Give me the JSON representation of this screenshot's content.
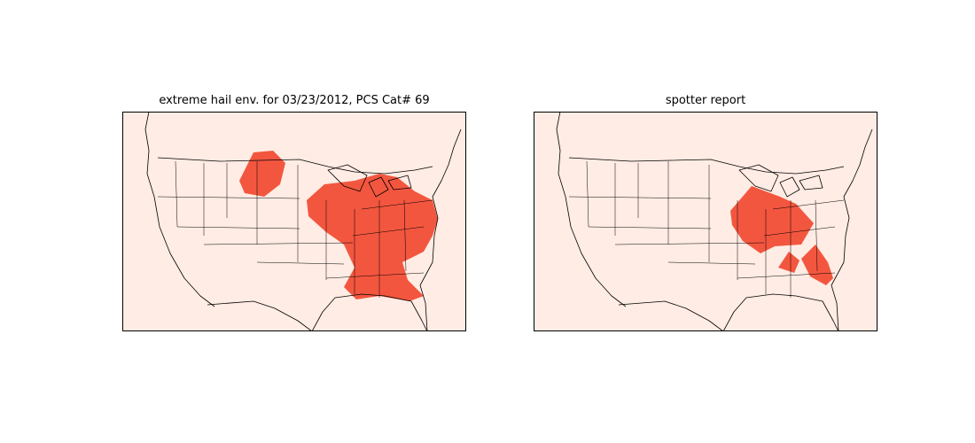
{
  "panels": [
    {
      "title": "extreme hail env. for 03/23/2012, PCS Cat# 69"
    },
    {
      "title": "spotter report"
    }
  ],
  "colors": {
    "background": "#ffece4",
    "hail_region": "#f3563f",
    "border": "#000000"
  }
}
